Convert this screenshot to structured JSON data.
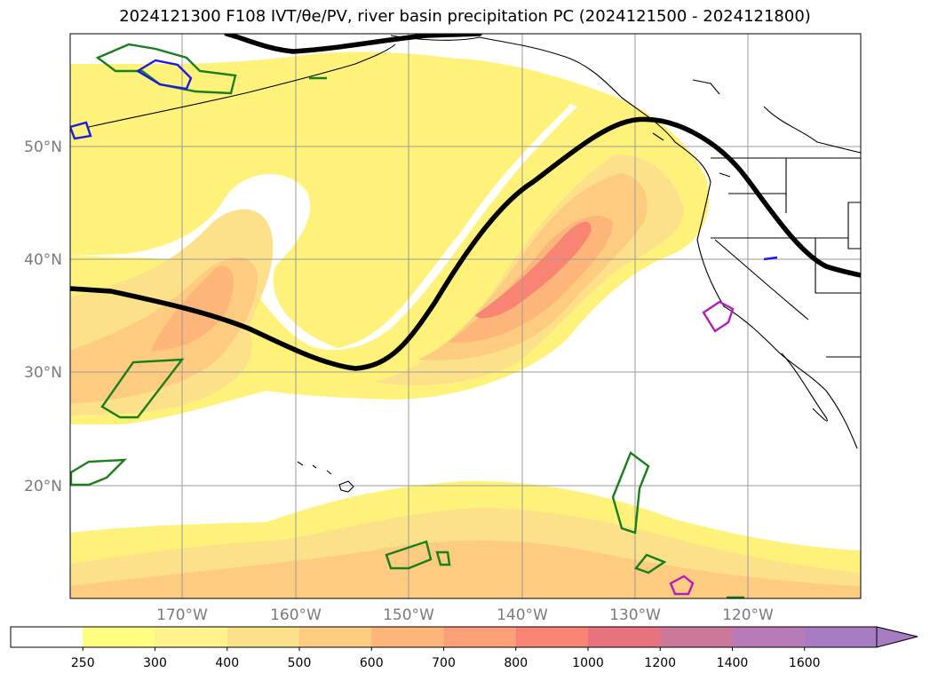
{
  "title": "2024121300 F108 IVT/θe/PV, river basin precipitation PC (2024121500 - 2024121800)",
  "map": {
    "lat_labels": [
      "50°N",
      "40°N",
      "30°N",
      "20°N"
    ],
    "lon_labels": [
      "170°W",
      "160°W",
      "150°W",
      "140°W",
      "130°W",
      "120°W"
    ]
  },
  "colorbar": {
    "levels": [
      "250",
      "300",
      "400",
      "500",
      "600",
      "700",
      "800",
      "1000",
      "1200",
      "1400",
      "1600"
    ],
    "colors": [
      "#ffffff",
      "#ffff80",
      "#fef28c",
      "#fde08a",
      "#fdcc80",
      "#fdb57a",
      "#fd9f77",
      "#f98473",
      "#e7737e",
      "#cc7898",
      "#b97ab8",
      "#a87cc4"
    ]
  },
  "colors": {
    "ivt_low": "#fff27a",
    "ivt_mid": "#fdd37a",
    "ivt_high": "#fb9677",
    "theta_e_contour": "#000000",
    "pv_green": "#1a7f1a",
    "pv_blue": "#1b1be6",
    "pv_magenta": "#b41cbf"
  }
}
